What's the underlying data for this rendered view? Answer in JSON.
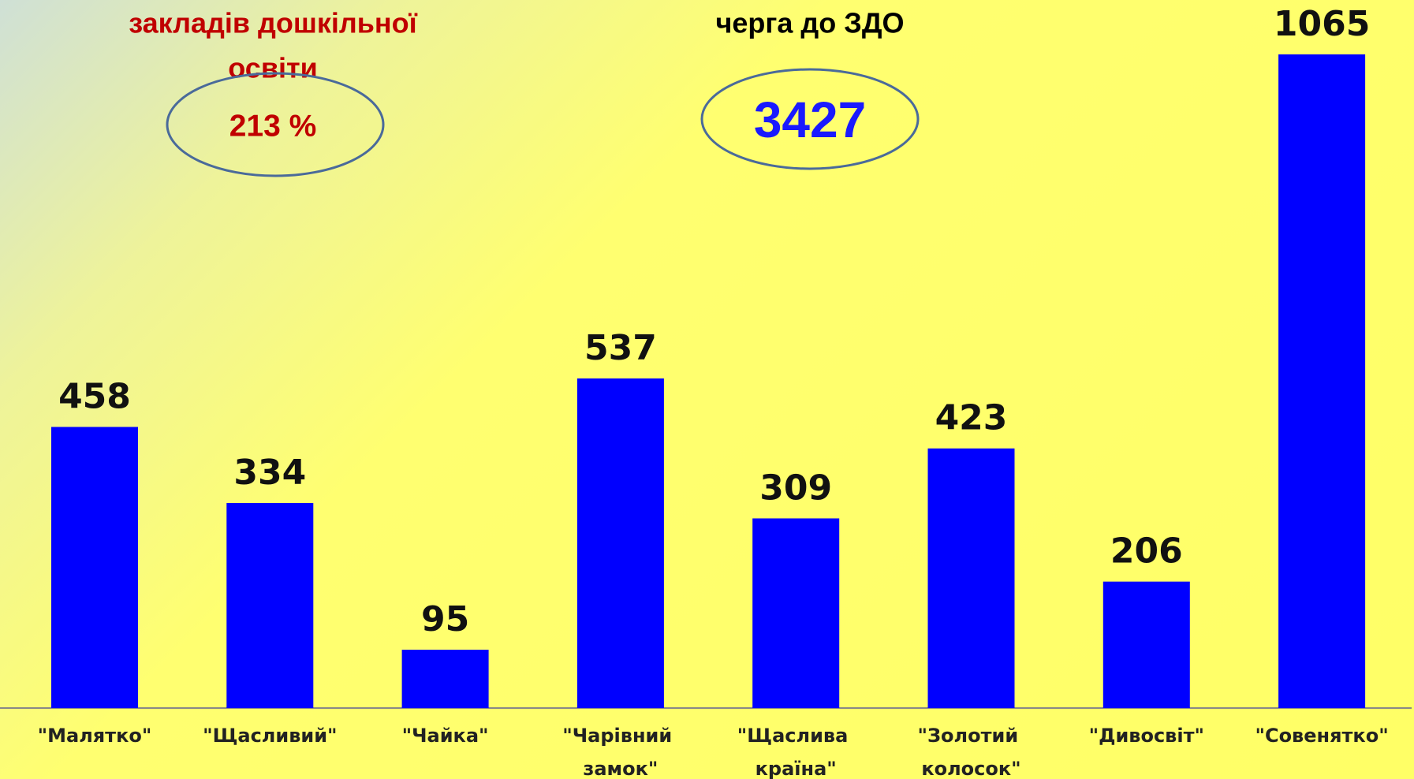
{
  "chart_data": {
    "type": "bar",
    "annotations": [
      "закладів дошкільної",
      "освіти",
      "213 %",
      "черга до ЗДО",
      "3427"
    ],
    "categories": [
      "\"Малятко\"",
      "\"Щасливий\"",
      "\"Чайка\"",
      "\"Чарівний замок\"",
      "\"Щаслива країна\"",
      "\"Золотий колосок\"",
      "\"Дивосвіт\"",
      "\"Совенятко\""
    ],
    "values": [
      458,
      334,
      95,
      537,
      309,
      423,
      206,
      1065
    ],
    "color": "#0000ff"
  }
}
